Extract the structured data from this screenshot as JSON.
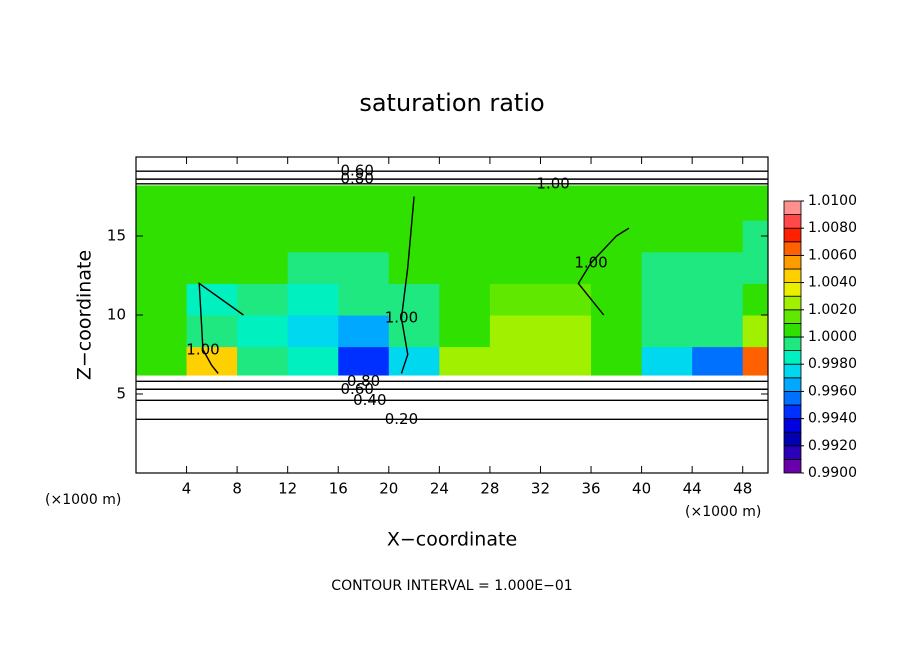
{
  "chart_data": {
    "type": "contour",
    "title": "saturation ratio",
    "x_label": "X−coordinate",
    "y_label": "Z−coordinate",
    "x_unit": "(×1000 m)",
    "y_unit": "(×1000 m)",
    "footer": "CONTOUR INTERVAL = 1.000E−01",
    "xlim": [
      0,
      50
    ],
    "ylim": [
      0,
      20
    ],
    "xticks": [
      4,
      8,
      12,
      16,
      20,
      24,
      28,
      32,
      36,
      40,
      44,
      48
    ],
    "yticks": [
      5,
      10,
      15
    ],
    "field": {
      "x_edges": [
        0,
        4,
        8,
        12,
        16,
        20,
        24,
        28,
        32,
        36,
        40,
        44,
        48,
        50
      ],
      "z_edges": [
        6.2,
        8,
        10,
        12,
        14,
        16,
        18.2
      ],
      "values": [
        [
          1.0005,
          1.004,
          0.9995,
          0.9985,
          0.994,
          0.997,
          1.002,
          1.003,
          1.003,
          1.001,
          0.997,
          0.995,
          1.006
        ],
        [
          1.0,
          0.999,
          0.998,
          0.997,
          0.996,
          0.999,
          1.001,
          1.002,
          1.002,
          1.001,
          0.999,
          0.999,
          1.003
        ],
        [
          1.0005,
          0.998,
          0.999,
          0.9985,
          0.999,
          0.9995,
          1.0005,
          1.0015,
          1.0015,
          1.0,
          0.9995,
          0.999,
          1.001
        ],
        [
          1.0005,
          1.0005,
          1.0,
          0.9995,
          0.9995,
          1.0,
          1.001,
          1.001,
          1.0005,
          1.0,
          0.9995,
          0.999,
          0.9995
        ],
        [
          1.0005,
          1.0005,
          1.0005,
          1.0,
          1.0,
          1.0005,
          1.001,
          1.0005,
          1.0005,
          1.0,
          1.0005,
          1.0005,
          0.9995
        ],
        [
          1.0005,
          1.0005,
          1.0005,
          1.0,
          1.0,
          1.0005,
          1.0005,
          1.0005,
          1.0005,
          1.0005,
          1.0005,
          1.0005,
          1.0005
        ]
      ]
    },
    "colorbar": {
      "clim": [
        0.99,
        1.01
      ],
      "colors": [
        "#6a00a8",
        "#2a00b8",
        "#0000b0",
        "#0000e0",
        "#0030ff",
        "#0070ff",
        "#00a8ff",
        "#00d8f0",
        "#00f0c0",
        "#20e880",
        "#30e000",
        "#60e800",
        "#a0f000",
        "#e8f000",
        "#ffd000",
        "#ff9c00",
        "#ff6000",
        "#ff2000",
        "#ff4848",
        "#ff9090"
      ],
      "ticks": [
        {
          "value": 1.01,
          "label": "1.0100"
        },
        {
          "value": 1.008,
          "label": "1.0080"
        },
        {
          "value": 1.006,
          "label": "1.0060"
        },
        {
          "value": 1.004,
          "label": "1.0040"
        },
        {
          "value": 1.002,
          "label": "1.0020"
        },
        {
          "value": 1.0,
          "label": "1.0000"
        },
        {
          "value": 0.998,
          "label": "0.9980"
        },
        {
          "value": 0.996,
          "label": "0.9960"
        },
        {
          "value": 0.994,
          "label": "0.9940"
        },
        {
          "value": 0.992,
          "label": "0.9920"
        },
        {
          "value": 0.99,
          "label": "0.9900"
        }
      ]
    },
    "contours": [
      {
        "level": {
          "value": 0.2,
          "label": "0.20"
        },
        "x": [
          0,
          21,
          50
        ],
        "z": [
          3.4,
          3.4,
          3.4
        ]
      },
      {
        "level": {
          "value": 0.4,
          "label": "0.40"
        },
        "x": [
          0,
          18.5,
          50
        ],
        "z": [
          4.6,
          4.6,
          4.6
        ]
      },
      {
        "level": {
          "value": 0.6,
          "label": "0.60"
        },
        "x": [
          0,
          17.5,
          50
        ],
        "z": [
          5.3,
          5.3,
          5.3
        ]
      },
      {
        "level": {
          "value": 0.8,
          "label": "0.80"
        },
        "x": [
          0,
          18,
          50
        ],
        "z": [
          5.8,
          5.8,
          5.8
        ]
      },
      {
        "level": {
          "value": 1.0,
          "label": "1.00"
        },
        "x": [
          0,
          33,
          50
        ],
        "z": [
          18.3,
          18.3,
          18.3
        ]
      },
      {
        "level": {
          "value": 0.8,
          "label": "0.80"
        },
        "x": [
          0,
          17.5,
          50
        ],
        "z": [
          18.6,
          18.6,
          18.6
        ]
      },
      {
        "level": {
          "value": 0.6,
          "label": "0.60"
        },
        "x": [
          0,
          17.5,
          50
        ],
        "z": [
          19.1,
          19.1,
          19.1
        ]
      },
      {
        "level": {
          "value": 1.0,
          "label": "1.00"
        },
        "x": [
          8.5,
          5,
          5.3,
          6,
          6.5
        ],
        "z": [
          10,
          12,
          7.8,
          6.8,
          6.3
        ]
      },
      {
        "level": {
          "value": 1.0,
          "label": "1.00"
        },
        "x": [
          22,
          21.5,
          21,
          21.5,
          21
        ],
        "z": [
          17.5,
          13,
          9.8,
          7.5,
          6.3
        ]
      },
      {
        "level": {
          "value": 1.0,
          "label": "1.00"
        },
        "x": [
          37,
          35,
          36,
          38,
          39
        ],
        "z": [
          10,
          12,
          13.3,
          15,
          15.5
        ]
      }
    ]
  }
}
